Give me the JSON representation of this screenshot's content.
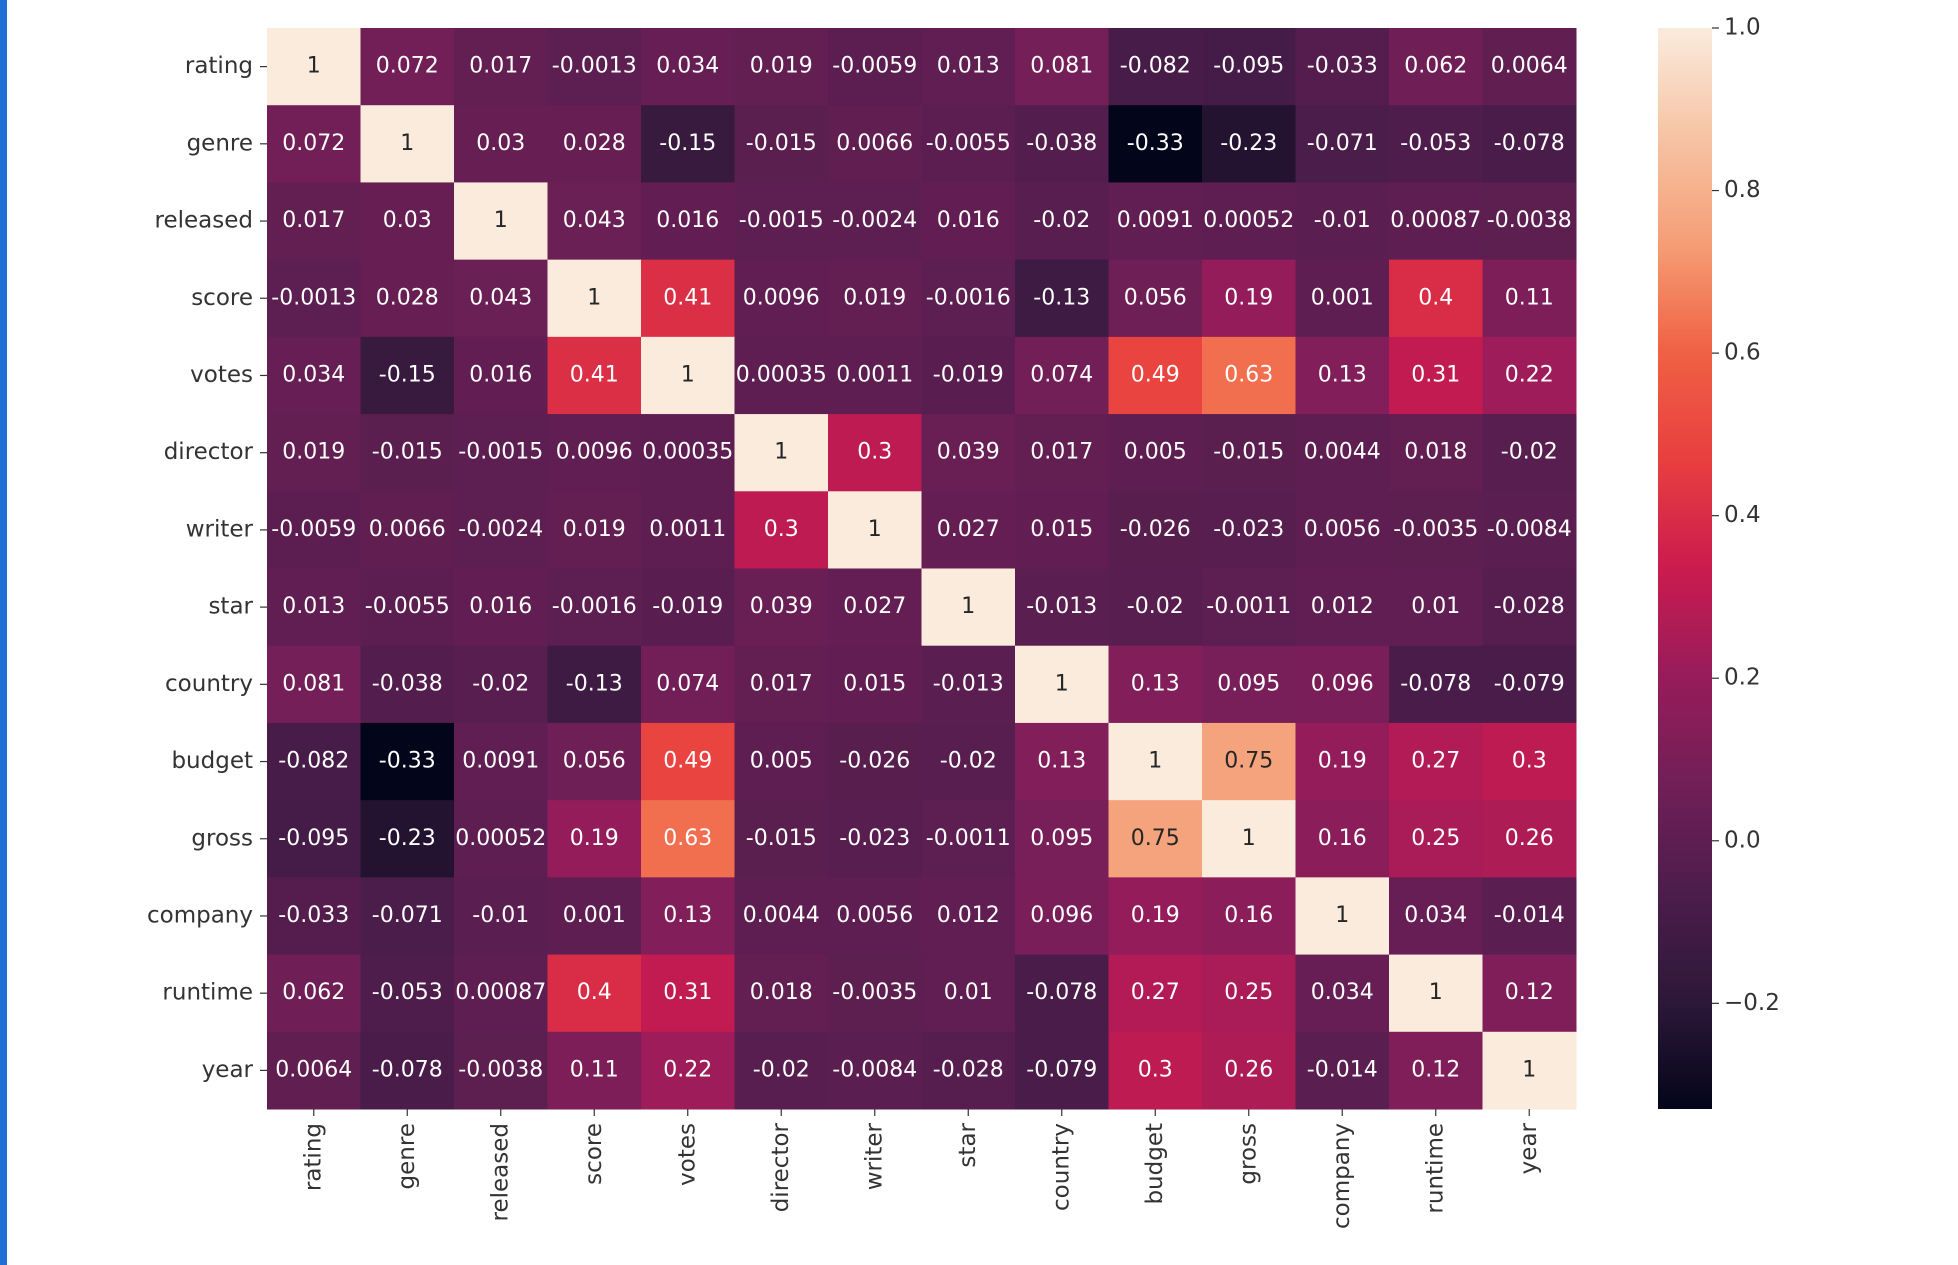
{
  "chart_data": {
    "type": "heatmap",
    "categories": [
      "rating",
      "genre",
      "released",
      "score",
      "votes",
      "director",
      "writer",
      "star",
      "country",
      "budget",
      "gross",
      "company",
      "runtime",
      "year"
    ],
    "values": [
      [
        1,
        0.072,
        0.017,
        -0.0013,
        0.034,
        0.019,
        -0.0059,
        0.013,
        0.081,
        -0.082,
        -0.095,
        -0.033,
        0.062,
        0.0064
      ],
      [
        0.072,
        1,
        0.03,
        0.028,
        -0.15,
        -0.015,
        0.0066,
        -0.0055,
        -0.038,
        -0.33,
        -0.23,
        -0.071,
        -0.053,
        -0.078
      ],
      [
        0.017,
        0.03,
        1,
        0.043,
        0.016,
        -0.0015,
        -0.0024,
        0.016,
        -0.02,
        0.0091,
        0.00052,
        -0.01,
        0.00087,
        -0.0038
      ],
      [
        -0.0013,
        0.028,
        0.043,
        1,
        0.41,
        0.0096,
        0.019,
        -0.0016,
        -0.13,
        0.056,
        0.19,
        0.001,
        0.4,
        0.11
      ],
      [
        0.034,
        -0.15,
        0.016,
        0.41,
        1,
        0.00035,
        0.0011,
        -0.019,
        0.074,
        0.49,
        0.63,
        0.13,
        0.31,
        0.22
      ],
      [
        0.019,
        -0.015,
        -0.0015,
        0.0096,
        0.00035,
        1,
        0.3,
        0.039,
        0.017,
        0.005,
        -0.015,
        0.0044,
        0.018,
        -0.02
      ],
      [
        -0.0059,
        0.0066,
        -0.0024,
        0.019,
        0.0011,
        0.3,
        1,
        0.027,
        0.015,
        -0.026,
        -0.023,
        0.0056,
        -0.0035,
        -0.0084
      ],
      [
        0.013,
        -0.0055,
        0.016,
        -0.0016,
        -0.019,
        0.039,
        0.027,
        1,
        -0.013,
        -0.02,
        -0.0011,
        0.012,
        0.01,
        -0.028
      ],
      [
        0.081,
        -0.038,
        -0.02,
        -0.13,
        0.074,
        0.017,
        0.015,
        -0.013,
        1,
        0.13,
        0.095,
        0.096,
        -0.078,
        -0.079
      ],
      [
        -0.082,
        -0.33,
        0.0091,
        0.056,
        0.49,
        0.005,
        -0.026,
        -0.02,
        0.13,
        1,
        0.75,
        0.19,
        0.27,
        0.3
      ],
      [
        -0.095,
        -0.23,
        0.00052,
        0.19,
        0.63,
        -0.015,
        -0.023,
        -0.0011,
        0.095,
        0.75,
        1,
        0.16,
        0.25,
        0.26
      ],
      [
        -0.033,
        -0.071,
        -0.01,
        0.001,
        0.13,
        0.0044,
        0.0056,
        0.012,
        0.096,
        0.19,
        0.16,
        1,
        0.034,
        -0.014
      ],
      [
        0.062,
        -0.053,
        0.00087,
        0.4,
        0.31,
        0.018,
        -0.0035,
        0.01,
        -0.078,
        0.27,
        0.25,
        0.034,
        1,
        0.12
      ],
      [
        0.0064,
        -0.078,
        -0.0038,
        0.11,
        0.22,
        -0.02,
        -0.0084,
        -0.028,
        -0.079,
        0.3,
        0.26,
        -0.014,
        0.12,
        1
      ]
    ],
    "colormap": [
      "#03051a",
      "#2d1839",
      "#4c1d4b",
      "#711f57",
      "#971c5b",
      "#cb1b4f",
      "#e83f3f",
      "#f06043",
      "#f59e76",
      "#f6c4a4",
      "#faebdd"
    ],
    "clim": [
      -0.33,
      1
    ],
    "cticks": [
      {
        "value": -0.2,
        "label": "−0.2"
      },
      {
        "value": 0,
        "label": "0.0"
      },
      0.2,
      0.4,
      0.6,
      0.8,
      {
        "value": 1,
        "label": "1.0"
      }
    ]
  }
}
